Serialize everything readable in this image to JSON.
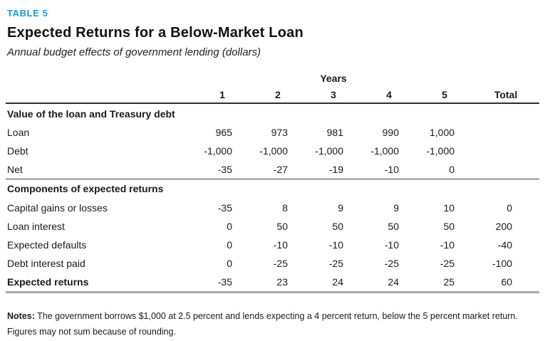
{
  "page": {
    "kicker": "TABLE 5",
    "title": "Expected Returns for a Below-Market Loan",
    "subtitle": "Annual budget effects of government lending (dollars)",
    "accent_color": "#2497d3"
  },
  "table": {
    "years_label": "Years",
    "col_headers": [
      "1",
      "2",
      "3",
      "4",
      "5",
      "Total"
    ],
    "sections": [
      {
        "header": "Value of the loan and Treasury debt",
        "rows": [
          {
            "label": "Loan",
            "values": [
              "965",
              "973",
              "981",
              "990",
              "1,000",
              ""
            ]
          },
          {
            "label": "Debt",
            "values": [
              "-1,000",
              "-1,000",
              "-1,000",
              "-1,000",
              "-1,000",
              ""
            ]
          },
          {
            "label": "Net",
            "values": [
              "-35",
              "-27",
              "-19",
              "-10",
              "0",
              ""
            ]
          }
        ]
      },
      {
        "header": "Components of expected returns",
        "rows": [
          {
            "label": "Capital gains or losses",
            "values": [
              "-35",
              "8",
              "9",
              "9",
              "10",
              "0"
            ]
          },
          {
            "label": "Loan interest",
            "values": [
              "0",
              "50",
              "50",
              "50",
              "50",
              "200"
            ]
          },
          {
            "label": "Expected defaults",
            "values": [
              "0",
              "-10",
              "-10",
              "-10",
              "-10",
              "-40"
            ]
          },
          {
            "label": "Debt interest paid",
            "values": [
              "0",
              "-25",
              "-25",
              "-25",
              "-25",
              "-100"
            ]
          }
        ]
      }
    ],
    "total_row": {
      "label": "Expected returns",
      "values": [
        "-35",
        "23",
        "24",
        "24",
        "25",
        "60"
      ]
    }
  },
  "notes": {
    "label": "Notes:",
    "text": " The government borrows $1,000 at 2.5 percent and lends expecting a 4 percent return, below the 5 percent market return. Figures may not sum because of rounding."
  }
}
